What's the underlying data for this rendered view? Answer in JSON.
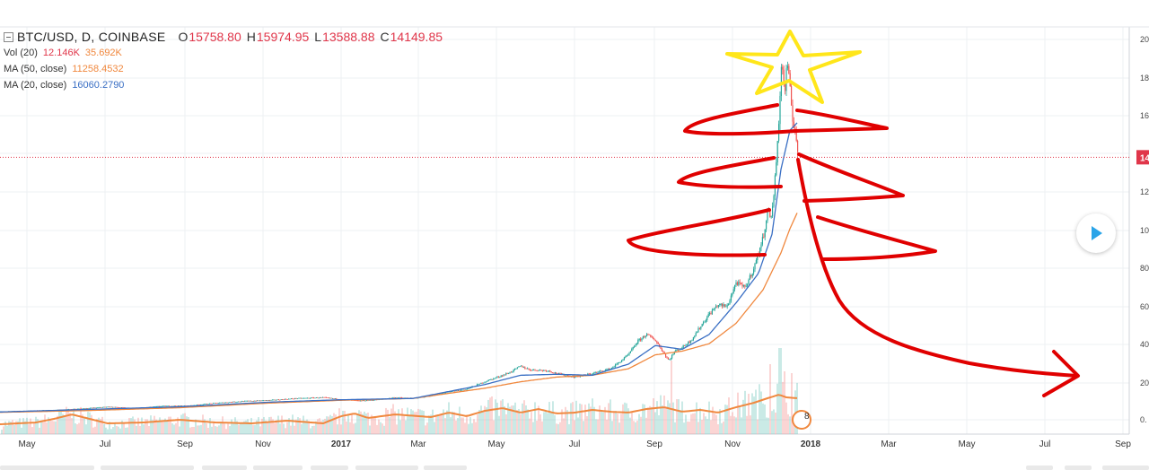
{
  "legend": {
    "symbol": "BTC/USD, D, COINBASE",
    "ohlc": [
      {
        "label": "O",
        "value": "15758.80"
      },
      {
        "label": "H",
        "value": "15974.95"
      },
      {
        "label": "L",
        "value": "13588.88"
      },
      {
        "label": "C",
        "value": "14149.85"
      }
    ],
    "vol": {
      "name": "Vol (20)",
      "value": "12.146K",
      "ma": "35.692K"
    },
    "ma50": {
      "name": "MA (50, close)",
      "value": "11258.4532"
    },
    "ma20": {
      "name": "MA (20, close)",
      "value": "16060.2790"
    }
  },
  "colors": {
    "up": "#26a69a",
    "down": "#ef5350",
    "ma50": "#f0883e",
    "ma20": "#3a6fc4",
    "ink": "#e00000",
    "star": "#ffe61a",
    "price_line": "#e0364a",
    "grid": "#eef0f3"
  },
  "chart_data": {
    "type": "candlestick",
    "x_axis_labels": [
      "May",
      "Jul",
      "Sep",
      "Nov",
      "2017",
      "Mar",
      "May",
      "Jul",
      "Sep",
      "Nov",
      "2018",
      "Mar",
      "May",
      "Jul",
      "Sep"
    ],
    "x_axis_bold": [
      "2017",
      "2018"
    ],
    "y_axis_labels": [
      "20",
      "18",
      "16",
      "14",
      "12",
      "10",
      "80",
      "60",
      "40",
      "20",
      "0."
    ],
    "y_range": [
      0,
      20500
    ],
    "current_price": 14149.85,
    "current_price_label": "14",
    "price_keypoints": [
      [
        0,
        440
      ],
      [
        60,
        520
      ],
      [
        90,
        600
      ],
      [
        120,
        700
      ],
      [
        150,
        620
      ],
      [
        180,
        740
      ],
      [
        210,
        760
      ],
      [
        240,
        900
      ],
      [
        270,
        1000
      ],
      [
        300,
        1050
      ],
      [
        330,
        1150
      ],
      [
        360,
        1200
      ],
      [
        380,
        1100
      ],
      [
        400,
        1020
      ],
      [
        420,
        1080
      ],
      [
        440,
        1200
      ],
      [
        460,
        1150
      ],
      [
        480,
        1300
      ],
      [
        500,
        1500
      ],
      [
        520,
        1650
      ],
      [
        540,
        2050
      ],
      [
        560,
        2400
      ],
      [
        570,
        2600
      ],
      [
        580,
        2900
      ],
      [
        590,
        2700
      ],
      [
        610,
        2650
      ],
      [
        620,
        2500
      ],
      [
        640,
        2300
      ],
      [
        660,
        2500
      ],
      [
        680,
        2750
      ],
      [
        690,
        3100
      ],
      [
        700,
        3500
      ],
      [
        710,
        4200
      ],
      [
        720,
        4600
      ],
      [
        730,
        4300
      ],
      [
        745,
        3200
      ],
      [
        752,
        3700
      ],
      [
        760,
        3900
      ],
      [
        770,
        4300
      ],
      [
        780,
        5000
      ],
      [
        790,
        5700
      ],
      [
        800,
        6200
      ],
      [
        810,
        6100
      ],
      [
        820,
        7400
      ],
      [
        830,
        7100
      ],
      [
        840,
        8200
      ],
      [
        850,
        9800
      ],
      [
        855,
        11200
      ],
      [
        860,
        11000
      ],
      [
        865,
        14000
      ],
      [
        868,
        16500
      ],
      [
        871,
        19500
      ],
      [
        874,
        17500
      ],
      [
        877,
        19300
      ],
      [
        880,
        17800
      ],
      [
        883,
        16200
      ],
      [
        886,
        15700
      ],
      [
        889,
        14150
      ]
    ],
    "ma20_keypoints": [
      [
        0,
        420
      ],
      [
        100,
        560
      ],
      [
        200,
        700
      ],
      [
        300,
        950
      ],
      [
        380,
        1080
      ],
      [
        460,
        1150
      ],
      [
        540,
        1900
      ],
      [
        580,
        2400
      ],
      [
        620,
        2450
      ],
      [
        660,
        2400
      ],
      [
        700,
        3000
      ],
      [
        730,
        4000
      ],
      [
        760,
        3800
      ],
      [
        790,
        4600
      ],
      [
        820,
        6300
      ],
      [
        845,
        7900
      ],
      [
        860,
        10000
      ],
      [
        870,
        13500
      ],
      [
        880,
        15600
      ],
      [
        889,
        16060
      ]
    ],
    "ma50_keypoints": [
      [
        0,
        400
      ],
      [
        100,
        500
      ],
      [
        200,
        650
      ],
      [
        300,
        900
      ],
      [
        380,
        1050
      ],
      [
        460,
        1150
      ],
      [
        540,
        1700
      ],
      [
        580,
        2050
      ],
      [
        620,
        2300
      ],
      [
        660,
        2400
      ],
      [
        700,
        2750
      ],
      [
        730,
        3500
      ],
      [
        760,
        3700
      ],
      [
        790,
        4100
      ],
      [
        820,
        5200
      ],
      [
        850,
        7000
      ],
      [
        870,
        9000
      ],
      [
        880,
        10300
      ],
      [
        889,
        11258
      ]
    ],
    "volume_ma_keypoints": [
      [
        0,
        11
      ],
      [
        40,
        13
      ],
      [
        60,
        17
      ],
      [
        80,
        22
      ],
      [
        100,
        17
      ],
      [
        120,
        12
      ],
      [
        160,
        13
      ],
      [
        200,
        16
      ],
      [
        240,
        13
      ],
      [
        280,
        12
      ],
      [
        320,
        15
      ],
      [
        360,
        12
      ],
      [
        380,
        20
      ],
      [
        395,
        23
      ],
      [
        410,
        18
      ],
      [
        440,
        22
      ],
      [
        480,
        19
      ],
      [
        500,
        24
      ],
      [
        520,
        20
      ],
      [
        540,
        26
      ],
      [
        560,
        29
      ],
      [
        580,
        24
      ],
      [
        600,
        28
      ],
      [
        620,
        23
      ],
      [
        640,
        24
      ],
      [
        660,
        27
      ],
      [
        680,
        25
      ],
      [
        700,
        24
      ],
      [
        720,
        28
      ],
      [
        740,
        30
      ],
      [
        760,
        25
      ],
      [
        780,
        27
      ],
      [
        800,
        24
      ],
      [
        820,
        30
      ],
      [
        840,
        35
      ],
      [
        855,
        40
      ],
      [
        868,
        44
      ],
      [
        876,
        41
      ],
      [
        889,
        40
      ]
    ],
    "volume_spikes": [
      [
        383,
        26
      ],
      [
        748,
        82
      ],
      [
        834,
        45
      ],
      [
        858,
        78
      ],
      [
        869,
        96
      ],
      [
        874,
        70
      ],
      [
        882,
        68
      ]
    ]
  },
  "annotations": {
    "star": "yellow-star-drawing",
    "tree": "red-christmas-tree-drawing",
    "arrow": "red-downward-arrow-drawing",
    "marker_text": "8"
  },
  "video": {
    "icon": "play-icon"
  }
}
